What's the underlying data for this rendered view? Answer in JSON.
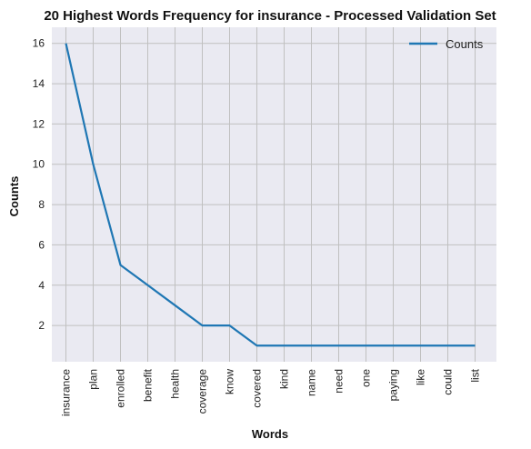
{
  "chart_data": {
    "type": "line",
    "title": "20 Highest Words Frequency for insurance - Processed Validation Set",
    "xlabel": "Words",
    "ylabel": "Counts",
    "categories": [
      "insurance",
      "plan",
      "enrolled",
      "benefit",
      "health",
      "coverage",
      "know",
      "covered",
      "kind",
      "name",
      "need",
      "one",
      "paying",
      "like",
      "could",
      "list"
    ],
    "series": [
      {
        "name": "Counts",
        "values": [
          16,
          10,
          5,
          4,
          3,
          2,
          2,
          1,
          1,
          1,
          1,
          1,
          1,
          1,
          1,
          1
        ]
      }
    ],
    "ylim": [
      0.2,
      16.8
    ],
    "yticks": [
      2,
      4,
      6,
      8,
      10,
      12,
      14,
      16
    ],
    "grid": true,
    "legend": "top-right",
    "colors": {
      "line": "#1f77b4",
      "plot_background": "#eaeaf2",
      "grid": "#c0c0c0"
    }
  }
}
